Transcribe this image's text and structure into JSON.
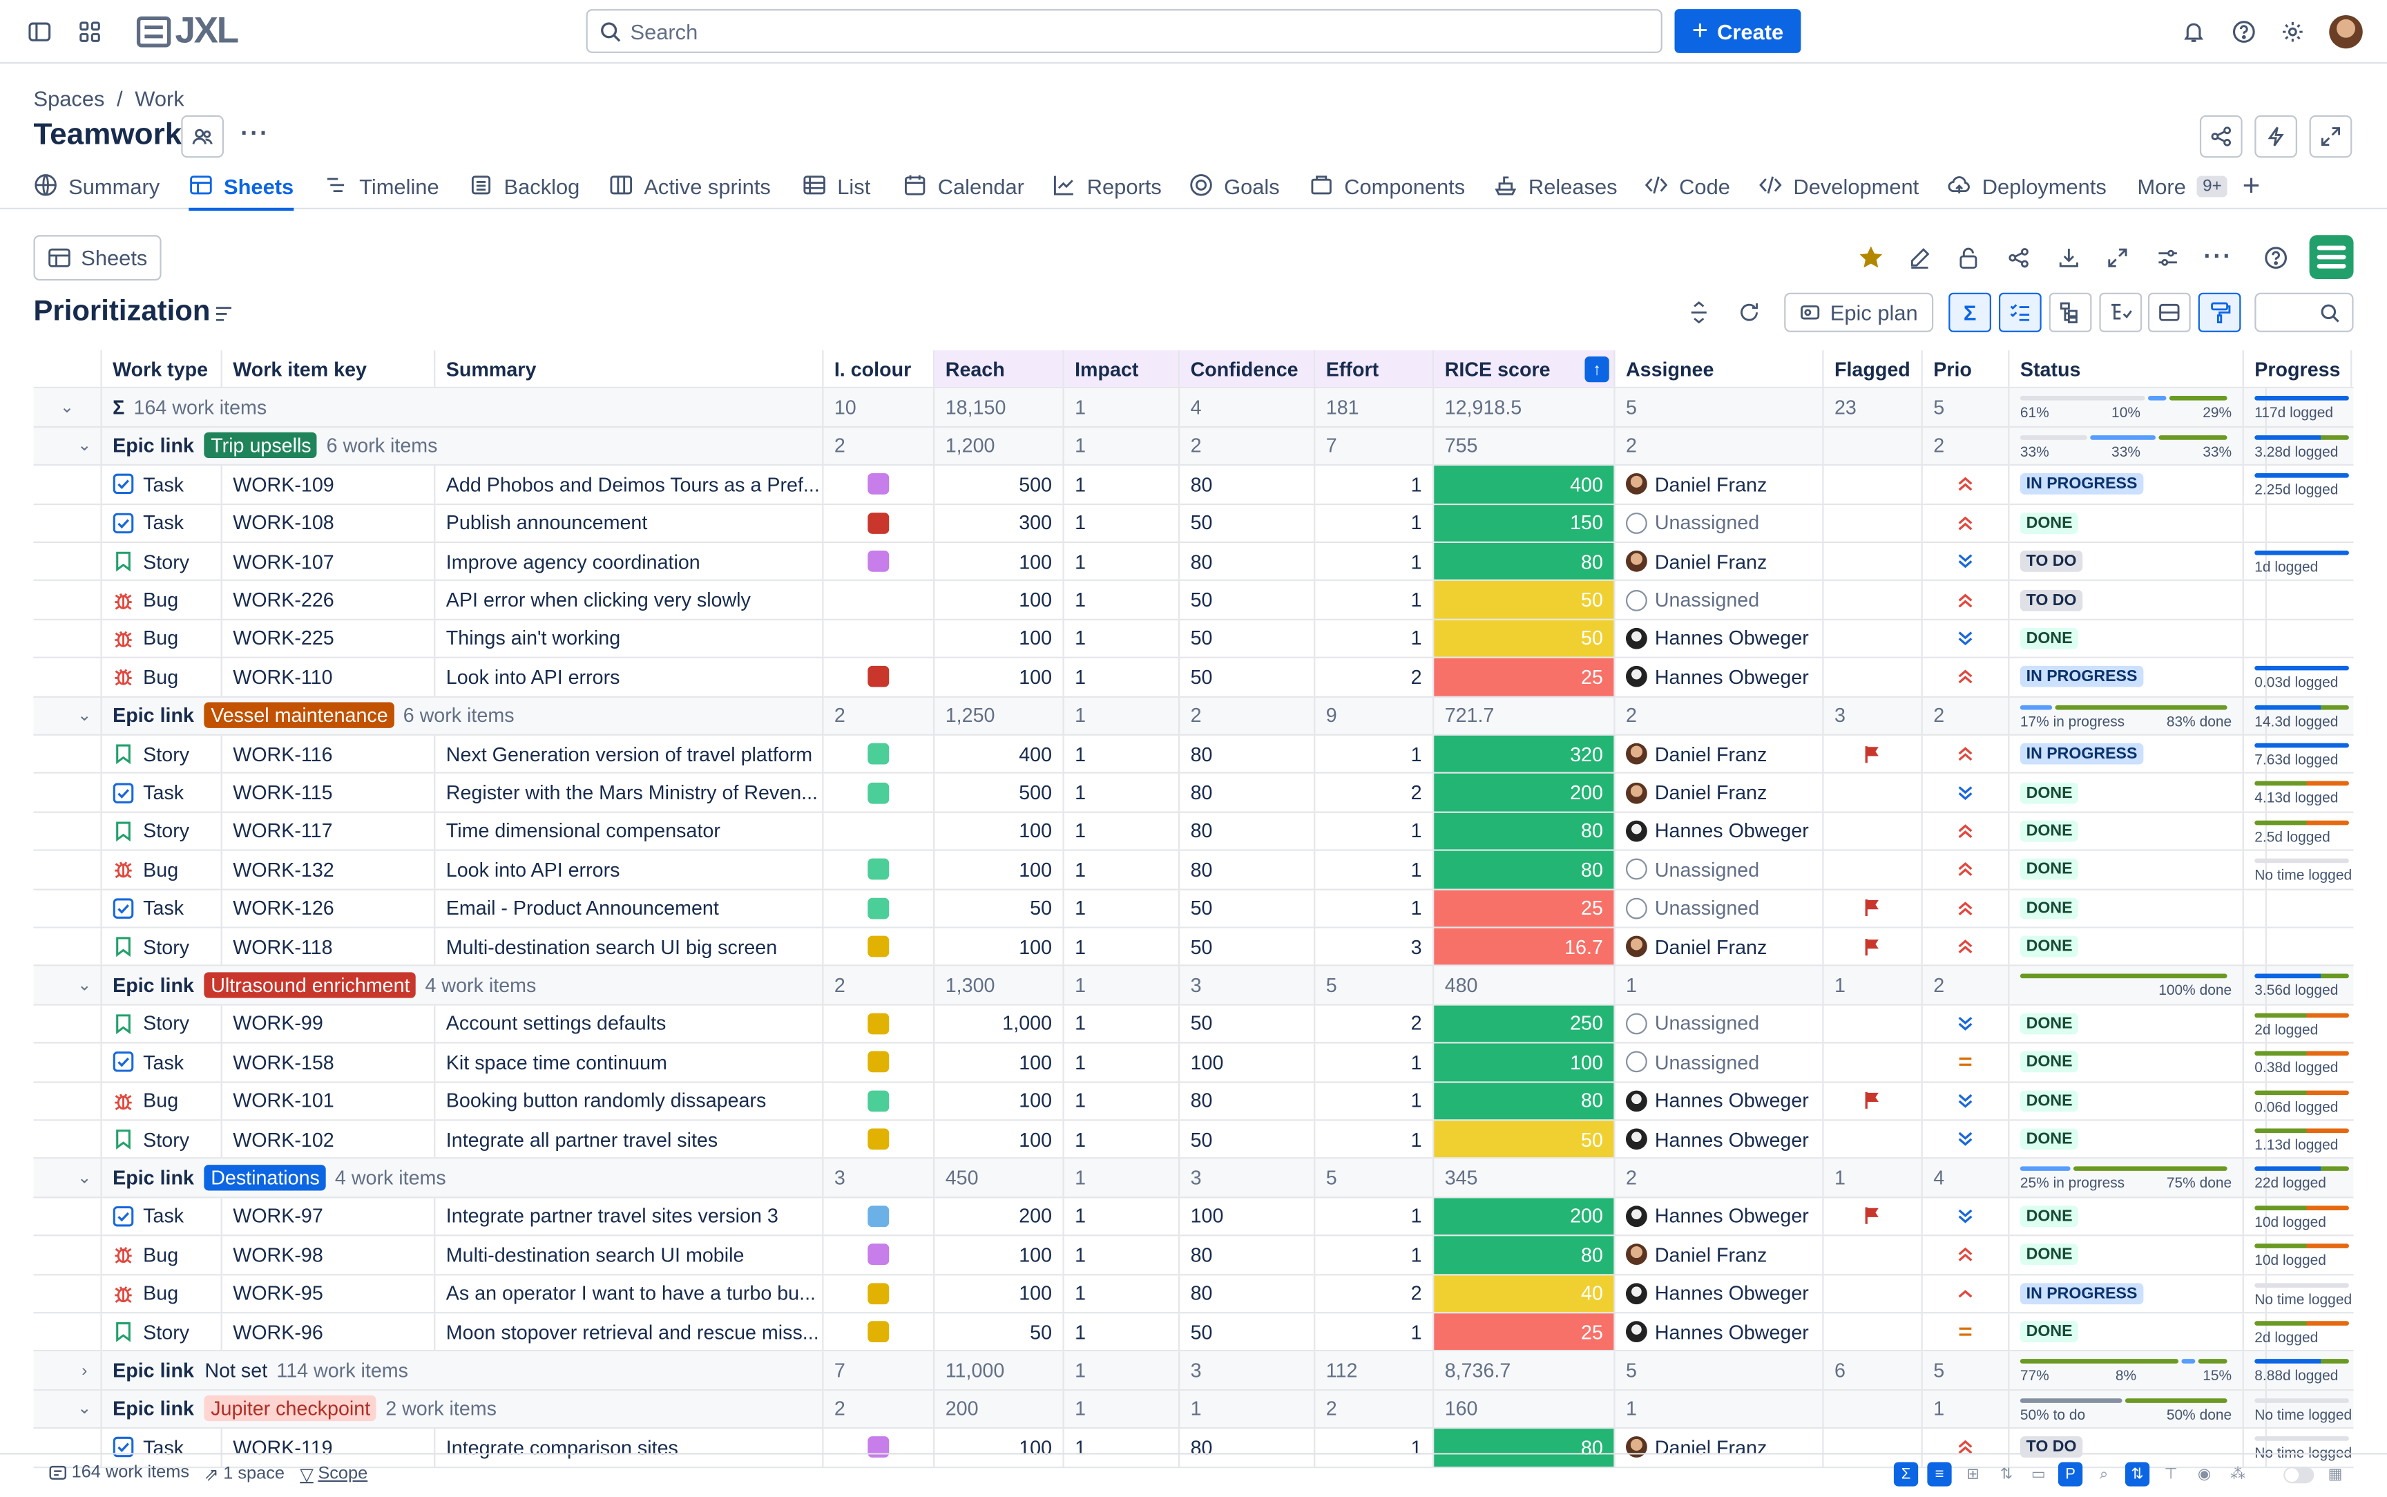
{
  "app": {
    "name": "JXL"
  },
  "topbar": {
    "search_placeholder": "Search",
    "create_label": "Create"
  },
  "breadcrumb": [
    "Spaces",
    "/",
    "Work"
  ],
  "project": {
    "title": "Teamwork"
  },
  "tabs": [
    {
      "label": "Summary",
      "icon": "globe-icon"
    },
    {
      "label": "Sheets",
      "icon": "sheet-icon",
      "active": true
    },
    {
      "label": "Timeline",
      "icon": "timeline-icon"
    },
    {
      "label": "Backlog",
      "icon": "backlog-icon"
    },
    {
      "label": "Active sprints",
      "icon": "board-icon"
    },
    {
      "label": "List",
      "icon": "list-icon"
    },
    {
      "label": "Calendar",
      "icon": "calendar-icon"
    },
    {
      "label": "Reports",
      "icon": "chart-icon"
    },
    {
      "label": "Goals",
      "icon": "target-icon"
    },
    {
      "label": "Components",
      "icon": "component-icon"
    },
    {
      "label": "Releases",
      "icon": "ship-icon"
    },
    {
      "label": "Code",
      "icon": "code-icon"
    },
    {
      "label": "Development",
      "icon": "code-icon"
    },
    {
      "label": "Deployments",
      "icon": "cloud-icon"
    },
    {
      "label": "More",
      "icon": ""
    }
  ],
  "more_count": "9+",
  "sheets_button": "Sheets",
  "view": {
    "title": "Prioritization",
    "epic_plan": "Epic plan"
  },
  "columns": [
    "Work type",
    "Work item key",
    "Summary",
    "I. colour",
    "Reach",
    "Impact",
    "Confidence",
    "Effort",
    "RICE score",
    "Assignee",
    "Flagged",
    "Prio",
    "Status",
    "Progress"
  ],
  "colors": {
    "rice_green": "#22b573",
    "rice_yellow": "#f0d030",
    "rice_red": "#f87168",
    "accent": "#0c66e4"
  },
  "total_row": {
    "label": "164 work items",
    "colour": "10",
    "reach": "18,150",
    "impact": "1",
    "confidence": "4",
    "effort": "181",
    "rice": "12,918.5",
    "assignee": "5",
    "flagged": "23",
    "prio": "5",
    "status_pcts": [
      "61%",
      "10%",
      "29%"
    ],
    "progress": "117d logged"
  },
  "groups": [
    {
      "epic": "Trip upsells",
      "tag_color": "#1f845a",
      "count": "6 work items",
      "colour": "2",
      "reach": "1,200",
      "impact": "1",
      "confidence": "2",
      "effort": "7",
      "rice": "755",
      "assignee": "2",
      "flagged": "",
      "prio": "2",
      "status_text": [
        "33%",
        "33%",
        "33%"
      ],
      "progress": "3.28d logged",
      "items": [
        {
          "type": "Task",
          "key": "WORK-109",
          "summary": "Add Phobos and Deimos Tours as a Pref...",
          "colour": "#c77dea",
          "reach": "500",
          "impact": "1",
          "confidence": "80",
          "effort": "1",
          "rice": "400",
          "rice_c": "g",
          "assignee": "Daniel Franz",
          "av": "df",
          "flag": false,
          "prio": "high",
          "status": "IN PROGRESS",
          "progress": "2.25d logged"
        },
        {
          "type": "Task",
          "key": "WORK-108",
          "summary": "Publish announcement",
          "colour": "#c9372c",
          "reach": "300",
          "impact": "1",
          "confidence": "50",
          "effort": "1",
          "rice": "150",
          "rice_c": "g",
          "assignee": "Unassigned",
          "av": "un",
          "flag": false,
          "prio": "high",
          "status": "DONE",
          "progress": ""
        },
        {
          "type": "Story",
          "key": "WORK-107",
          "summary": "Improve agency coordination",
          "colour": "#c77dea",
          "reach": "100",
          "impact": "1",
          "confidence": "80",
          "effort": "1",
          "rice": "80",
          "rice_c": "g",
          "assignee": "Daniel Franz",
          "av": "df",
          "flag": false,
          "prio": "low",
          "status": "TO DO",
          "progress": "1d logged"
        },
        {
          "type": "Bug",
          "key": "WORK-226",
          "summary": "API error when clicking very slowly",
          "colour": "",
          "reach": "100",
          "impact": "1",
          "confidence": "50",
          "effort": "1",
          "rice": "50",
          "rice_c": "y",
          "assignee": "Unassigned",
          "av": "un",
          "flag": false,
          "prio": "high",
          "status": "TO DO",
          "progress": ""
        },
        {
          "type": "Bug",
          "key": "WORK-225",
          "summary": "Things ain't working",
          "colour": "",
          "reach": "100",
          "impact": "1",
          "confidence": "50",
          "effort": "1",
          "rice": "50",
          "rice_c": "y",
          "assignee": "Hannes Obweger",
          "av": "ho",
          "flag": false,
          "prio": "low",
          "status": "DONE",
          "progress": ""
        },
        {
          "type": "Bug",
          "key": "WORK-110",
          "summary": "Look into API errors",
          "colour": "#c9372c",
          "reach": "100",
          "impact": "1",
          "confidence": "50",
          "effort": "2",
          "rice": "25",
          "rice_c": "r",
          "assignee": "Hannes Obweger",
          "av": "ho",
          "flag": false,
          "prio": "high",
          "status": "IN PROGRESS",
          "progress": "0.03d logged"
        }
      ]
    },
    {
      "epic": "Vessel maintenance",
      "tag_color": "#c25100",
      "count": "6 work items",
      "colour": "2",
      "reach": "1,250",
      "impact": "1",
      "confidence": "2",
      "effort": "9",
      "rice": "721.7",
      "assignee": "2",
      "flagged": "3",
      "prio": "2",
      "status_text": [
        "17% in progress",
        "83% done"
      ],
      "progress": "14.3d logged",
      "items": [
        {
          "type": "Story",
          "key": "WORK-116",
          "summary": "Next Generation version of travel platform",
          "colour": "#4bce97",
          "reach": "400",
          "impact": "1",
          "confidence": "80",
          "effort": "1",
          "rice": "320",
          "rice_c": "g",
          "assignee": "Daniel Franz",
          "av": "df",
          "flag": true,
          "prio": "high",
          "status": "IN PROGRESS",
          "progress": "7.63d logged"
        },
        {
          "type": "Task",
          "key": "WORK-115",
          "summary": "Register with the Mars Ministry of Reven...",
          "colour": "#4bce97",
          "reach": "500",
          "impact": "1",
          "confidence": "80",
          "effort": "2",
          "rice": "200",
          "rice_c": "g",
          "assignee": "Daniel Franz",
          "av": "df",
          "flag": false,
          "prio": "low",
          "status": "DONE",
          "progress": "4.13d logged"
        },
        {
          "type": "Story",
          "key": "WORK-117",
          "summary": "Time dimensional compensator",
          "colour": "",
          "reach": "100",
          "impact": "1",
          "confidence": "80",
          "effort": "1",
          "rice": "80",
          "rice_c": "g",
          "assignee": "Hannes Obweger",
          "av": "ho",
          "flag": false,
          "prio": "high",
          "status": "DONE",
          "progress": "2.5d logged"
        },
        {
          "type": "Bug",
          "key": "WORK-132",
          "summary": "Look into API errors",
          "colour": "#4bce97",
          "reach": "100",
          "impact": "1",
          "confidence": "80",
          "effort": "1",
          "rice": "80",
          "rice_c": "g",
          "assignee": "Unassigned",
          "av": "un",
          "flag": false,
          "prio": "high",
          "status": "DONE",
          "progress": "No time logged"
        },
        {
          "type": "Task",
          "key": "WORK-126",
          "summary": "Email - Product Announcement",
          "colour": "#4bce97",
          "reach": "50",
          "impact": "1",
          "confidence": "50",
          "effort": "1",
          "rice": "25",
          "rice_c": "r",
          "assignee": "Unassigned",
          "av": "un",
          "flag": true,
          "prio": "high",
          "status": "DONE",
          "progress": ""
        },
        {
          "type": "Story",
          "key": "WORK-118",
          "summary": "Multi-destination search UI big screen",
          "colour": "#e2b203",
          "reach": "100",
          "impact": "1",
          "confidence": "50",
          "effort": "3",
          "rice": "16.7",
          "rice_c": "r",
          "assignee": "Daniel Franz",
          "av": "df",
          "flag": true,
          "prio": "high",
          "status": "DONE",
          "progress": ""
        }
      ]
    },
    {
      "epic": "Ultrasound enrichment",
      "tag_color": "#c9372c",
      "count": "4 work items",
      "colour": "2",
      "reach": "1,300",
      "impact": "1",
      "confidence": "3",
      "effort": "5",
      "rice": "480",
      "assignee": "1",
      "flagged": "1",
      "prio": "2",
      "status_text": [
        "100% done"
      ],
      "progress": "3.56d logged",
      "items": [
        {
          "type": "Story",
          "key": "WORK-99",
          "summary": "Account settings defaults",
          "colour": "#e2b203",
          "reach": "1,000",
          "impact": "1",
          "confidence": "50",
          "effort": "2",
          "rice": "250",
          "rice_c": "g",
          "assignee": "Unassigned",
          "av": "un",
          "flag": false,
          "prio": "low",
          "status": "DONE",
          "progress": "2d logged"
        },
        {
          "type": "Task",
          "key": "WORK-158",
          "summary": "Kit space time continuum",
          "colour": "#e2b203",
          "reach": "100",
          "impact": "1",
          "confidence": "100",
          "effort": "1",
          "rice": "100",
          "rice_c": "g",
          "assignee": "Unassigned",
          "av": "un",
          "flag": false,
          "prio": "medium",
          "status": "DONE",
          "progress": "0.38d logged"
        },
        {
          "type": "Bug",
          "key": "WORK-101",
          "summary": "Booking button randomly dissapears",
          "colour": "#4bce97",
          "reach": "100",
          "impact": "1",
          "confidence": "80",
          "effort": "1",
          "rice": "80",
          "rice_c": "g",
          "assignee": "Hannes Obweger",
          "av": "ho",
          "flag": true,
          "prio": "low",
          "status": "DONE",
          "progress": "0.06d logged"
        },
        {
          "type": "Story",
          "key": "WORK-102",
          "summary": "Integrate all partner travel sites",
          "colour": "#e2b203",
          "reach": "100",
          "impact": "1",
          "confidence": "50",
          "effort": "1",
          "rice": "50",
          "rice_c": "y",
          "assignee": "Hannes Obweger",
          "av": "ho",
          "flag": false,
          "prio": "low",
          "status": "DONE",
          "progress": "1.13d logged"
        }
      ]
    },
    {
      "epic": "Destinations",
      "tag_color": "#0c66e4",
      "count": "4 work items",
      "colour": "3",
      "reach": "450",
      "impact": "1",
      "confidence": "3",
      "effort": "5",
      "rice": "345",
      "assignee": "2",
      "flagged": "1",
      "prio": "4",
      "status_text": [
        "25% in progress",
        "75% done"
      ],
      "progress": "22d logged",
      "items": [
        {
          "type": "Task",
          "key": "WORK-97",
          "summary": "Integrate partner travel sites version 3",
          "colour": "#6cb0e8",
          "reach": "200",
          "impact": "1",
          "confidence": "100",
          "effort": "1",
          "rice": "200",
          "rice_c": "g",
          "assignee": "Hannes Obweger",
          "av": "ho",
          "flag": true,
          "prio": "low",
          "status": "DONE",
          "progress": "10d logged"
        },
        {
          "type": "Bug",
          "key": "WORK-98",
          "summary": "Multi-destination search UI mobile",
          "colour": "#c77dea",
          "reach": "100",
          "impact": "1",
          "confidence": "80",
          "effort": "1",
          "rice": "80",
          "rice_c": "g",
          "assignee": "Daniel Franz",
          "av": "df",
          "flag": false,
          "prio": "high",
          "status": "DONE",
          "progress": "10d logged"
        },
        {
          "type": "Bug",
          "key": "WORK-95",
          "summary": "As an operator I want to have a turbo bu...",
          "colour": "#e2b203",
          "reach": "100",
          "impact": "1",
          "confidence": "80",
          "effort": "2",
          "rice": "40",
          "rice_c": "y",
          "assignee": "Hannes Obweger",
          "av": "ho",
          "flag": false,
          "prio": "up",
          "status": "IN PROGRESS",
          "progress": "No time logged"
        },
        {
          "type": "Story",
          "key": "WORK-96",
          "summary": "Moon stopover retrieval and rescue miss...",
          "colour": "#e2b203",
          "reach": "50",
          "impact": "1",
          "confidence": "50",
          "effort": "1",
          "rice": "25",
          "rice_c": "r",
          "assignee": "Hannes Obweger",
          "av": "ho",
          "flag": false,
          "prio": "medium",
          "status": "DONE",
          "progress": "2d logged"
        }
      ]
    },
    {
      "epic": "Not set",
      "tag_color": "",
      "count": "114 work items",
      "colour": "7",
      "reach": "11,000",
      "impact": "1",
      "confidence": "3",
      "effort": "112",
      "rice": "8,736.7",
      "assignee": "5",
      "flagged": "6",
      "prio": "5",
      "status_text": [
        "77%",
        "8%",
        "15%"
      ],
      "progress": "8.88d logged",
      "collapsed": true,
      "items": []
    },
    {
      "epic": "Jupiter checkpoint",
      "tag_color": "#ffd5d2",
      "tag_text_color": "#ae2e24",
      "count": "2 work items",
      "colour": "2",
      "reach": "200",
      "impact": "1",
      "confidence": "1",
      "effort": "2",
      "rice": "160",
      "assignee": "1",
      "flagged": "",
      "prio": "1",
      "status_text": [
        "50% to do",
        "50% done"
      ],
      "progress": "No time logged",
      "items": [
        {
          "type": "Task",
          "key": "WORK-119",
          "summary": "Integrate comparison sites",
          "colour": "#c77dea",
          "reach": "100",
          "impact": "1",
          "confidence": "80",
          "effort": "1",
          "rice": "80",
          "rice_c": "g",
          "assignee": "Daniel Franz",
          "av": "df",
          "flag": false,
          "prio": "high",
          "status": "TO DO",
          "progress": "No time logged"
        }
      ]
    }
  ],
  "epic_link_label": "Epic link",
  "footer": {
    "items_count": "164 work items",
    "spaces": "1 space",
    "scope": "Scope"
  }
}
